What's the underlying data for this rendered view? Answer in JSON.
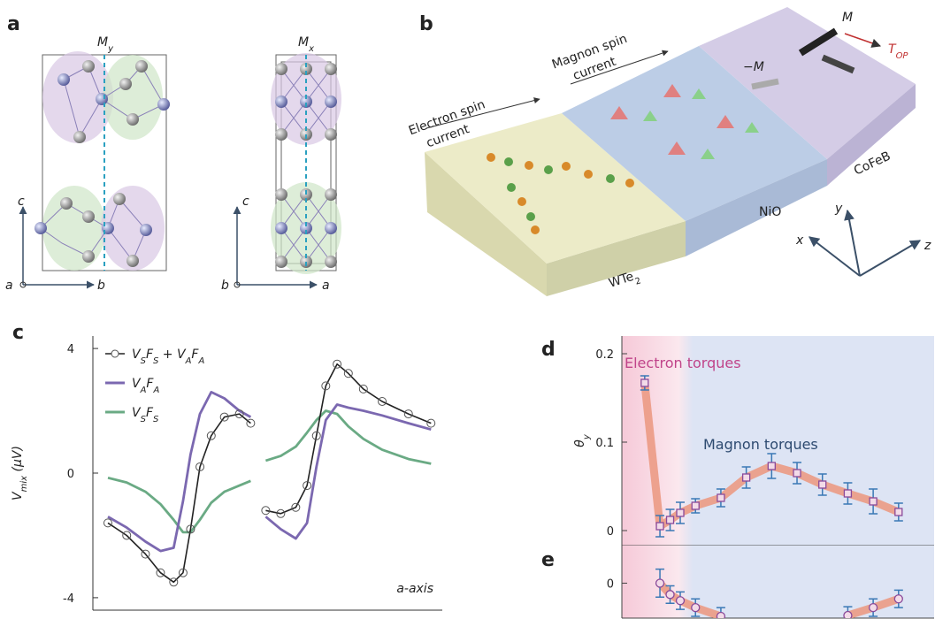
{
  "panel_a": {
    "label": "a",
    "left": {
      "mirror": [
        "M",
        "y"
      ],
      "axes": [
        "c",
        "a",
        "b"
      ]
    },
    "right": {
      "mirror": [
        "M",
        "x"
      ],
      "axes": [
        "c",
        "b",
        "a"
      ]
    }
  },
  "panel_b": {
    "label": "b",
    "electron_current": [
      "Electron spin",
      "current"
    ],
    "magnon_current": [
      "Magnon spin",
      "current"
    ],
    "magnetization": "M",
    "torque": [
      "T",
      "OP"
    ],
    "neg_magnetization": "−M",
    "layers": {
      "wte2": [
        "WTe",
        "2"
      ],
      "nio": "NiO",
      "cofeb": "CoFeB"
    },
    "axes": {
      "x": "x",
      "y": "y",
      "z": "z"
    }
  },
  "chart_data": [
    {
      "type": "line",
      "label": "c",
      "ylabel": [
        "V",
        "mix",
        " (μV)"
      ],
      "annotation": "a-axis",
      "ylim": [
        -4.4,
        4.4
      ],
      "yticks": [
        -4,
        0,
        4
      ],
      "xlim": [
        -0.4,
        8.9
      ],
      "legend": "upper left",
      "x": [
        0,
        0.5,
        1,
        1.4,
        1.75,
        2.0,
        2.2,
        2.45,
        2.75,
        3.1,
        3.5,
        3.8,
        4.0,
        4.2,
        4.6,
        5.0,
        5.3,
        5.55,
        5.8,
        6.1,
        6.4,
        6.8,
        7.3,
        8.0,
        8.6
      ],
      "series": [
        {
          "name": [
            "V",
            "S",
            "F",
            "S",
            " + V",
            "A",
            "F",
            "A"
          ],
          "color": "#222222",
          "marker": "circle",
          "values": [
            -1.6,
            -2.0,
            -2.6,
            -3.2,
            -3.5,
            -3.2,
            -1.8,
            0.2,
            1.2,
            1.8,
            1.9,
            1.6,
            null,
            -1.2,
            -1.3,
            -1.1,
            -0.4,
            1.2,
            2.8,
            3.5,
            3.2,
            2.7,
            2.3,
            1.9,
            1.6
          ]
        },
        {
          "name": [
            "V",
            "A",
            "F",
            "A"
          ],
          "color": "#7b68b0",
          "values": [
            -1.4,
            -1.75,
            -2.2,
            -2.5,
            -2.4,
            -0.9,
            0.6,
            1.9,
            2.6,
            2.4,
            2.0,
            1.8,
            null,
            -1.4,
            -1.8,
            -2.1,
            -1.6,
            0.2,
            1.7,
            2.2,
            2.1,
            2.0,
            1.85,
            1.6,
            1.4
          ]
        },
        {
          "name": [
            "V",
            "S",
            "F",
            "S"
          ],
          "color": "#6aaa84",
          "values": [
            -0.15,
            -0.3,
            -0.6,
            -1.0,
            -1.5,
            -1.9,
            -1.9,
            -1.5,
            -0.95,
            -0.6,
            -0.4,
            -0.25,
            null,
            0.4,
            0.55,
            0.85,
            1.3,
            1.7,
            2.0,
            1.9,
            1.5,
            1.1,
            0.75,
            0.45,
            0.3
          ]
        }
      ]
    },
    {
      "type": "errorbar",
      "label": "d",
      "ylabel": [
        "θ",
        "y"
      ],
      "annotations": [
        "Electron torques",
        "Magnon torques"
      ],
      "ylim": [
        -0.017,
        0.22
      ],
      "yticks": [
        0,
        0.1,
        0.2
      ],
      "xlim": [
        -0.9,
        11.4
      ],
      "x": [
        0,
        0.6,
        1.0,
        1.4,
        2.0,
        3,
        4,
        5,
        6,
        7,
        8,
        9,
        10
      ],
      "values": [
        0.167,
        0.005,
        0.012,
        0.02,
        0.028,
        0.037,
        0.06,
        0.073,
        0.065,
        0.052,
        0.042,
        0.033,
        0.021
      ],
      "errors": [
        0.008,
        0.012,
        0.012,
        0.012,
        0.008,
        0.01,
        0.012,
        0.014,
        0.012,
        0.012,
        0.012,
        0.014,
        0.01
      ],
      "color": "#3a78b5",
      "marker": "square",
      "marker_color": "#8a4a9a",
      "trend_color": "#eb9a84"
    },
    {
      "type": "errorbar",
      "label": "e",
      "ylim": [
        -0.04,
        0.043
      ],
      "yticks": [
        0
      ],
      "xlim": [
        -0.9,
        11.4
      ],
      "x": [
        0,
        0.6,
        1.0,
        1.4,
        2.0,
        3,
        4,
        5,
        6,
        7,
        8,
        9,
        10
      ],
      "values": [
        null,
        0.0,
        -0.013,
        -0.02,
        -0.028,
        -0.038,
        null,
        null,
        null,
        null,
        -0.037,
        -0.028,
        -0.018
      ],
      "errors": [
        null,
        0.016,
        0.01,
        0.01,
        0.01,
        0.01,
        null,
        null,
        null,
        null,
        0.01,
        0.01,
        0.01
      ],
      "color": "#3a78b5",
      "marker": "circle",
      "marker_color": "#8a4a9a",
      "trend_color": "#eb9a84"
    }
  ]
}
